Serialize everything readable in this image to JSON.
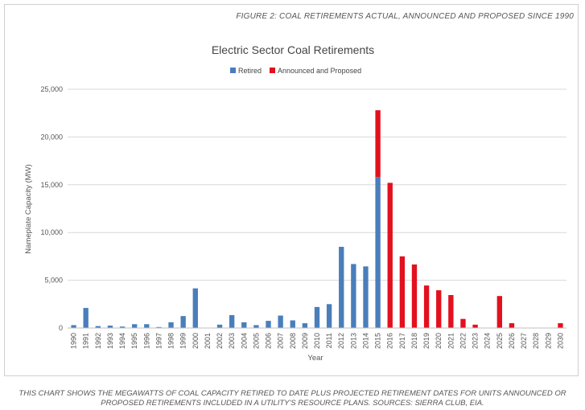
{
  "figure_label": "FIGURE 2: COAL RETIREMENTS ACTUAL, ANNOUNCED AND PROPOSED SINCE 1990",
  "caption": "THIS CHART SHOWS THE MEGAWATTS OF COAL CAPACITY RETIRED TO DATE PLUS PROJECTED RETIREMENT DATES FOR UNITS ANNOUNCED OR PROPOSED RETIREMENTS INCLUDED IN A UTILITY'S RESOURCE PLANS. SOURCES: SIERRA CLUB, EIA.",
  "chart_data": {
    "type": "bar",
    "stacked": true,
    "title": "Electric Sector Coal Retirements",
    "xlabel": "Year",
    "ylabel": "Nameplate Capacity (MW)",
    "ylim": [
      0,
      25000
    ],
    "yticks": [
      0,
      5000,
      10000,
      15000,
      20000,
      25000
    ],
    "ytick_labels": [
      "0",
      "5,000",
      "10,000",
      "15,000",
      "20,000",
      "25,000"
    ],
    "grid": true,
    "legend": "top",
    "categories": [
      "1990",
      "1991",
      "1992",
      "1993",
      "1994",
      "1995",
      "1996",
      "1997",
      "1998",
      "1999",
      "2000",
      "2001",
      "2002",
      "2003",
      "2004",
      "2005",
      "2006",
      "2007",
      "2008",
      "2009",
      "2010",
      "2011",
      "2012",
      "2013",
      "2014",
      "2015",
      "2016",
      "2017",
      "2018",
      "2019",
      "2020",
      "2021",
      "2022",
      "2023",
      "2024",
      "2025",
      "2026",
      "2027",
      "2028",
      "2029",
      "2030"
    ],
    "series": [
      {
        "name": "Retired",
        "color": "#4a7ebb",
        "values": [
          300,
          2100,
          200,
          250,
          150,
          400,
          400,
          100,
          600,
          1250,
          4150,
          0,
          350,
          1350,
          600,
          300,
          750,
          1300,
          800,
          500,
          2200,
          2500,
          8500,
          6700,
          6450,
          15800,
          0,
          0,
          0,
          0,
          0,
          0,
          0,
          0,
          0,
          0,
          0,
          0,
          0,
          0,
          0
        ]
      },
      {
        "name": "Announced and Proposed",
        "color": "#e3101e",
        "values": [
          0,
          0,
          0,
          0,
          0,
          0,
          0,
          0,
          0,
          0,
          0,
          0,
          0,
          0,
          0,
          0,
          0,
          0,
          0,
          0,
          0,
          0,
          0,
          0,
          0,
          7000,
          15200,
          7500,
          6650,
          4450,
          3950,
          3450,
          950,
          350,
          0,
          3350,
          500,
          0,
          0,
          0,
          500
        ]
      }
    ]
  }
}
